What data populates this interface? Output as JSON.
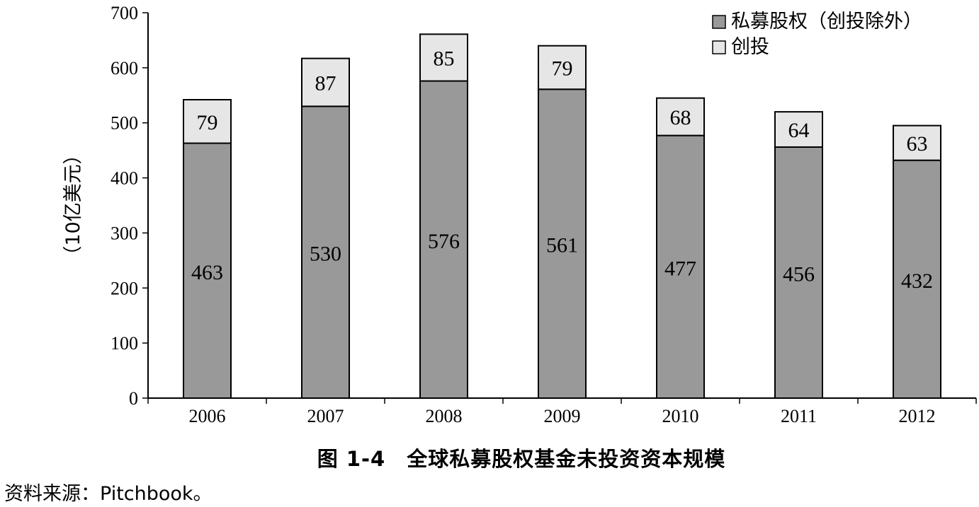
{
  "chart_data": {
    "type": "bar",
    "stacked": true,
    "categories": [
      "2006",
      "2007",
      "2008",
      "2009",
      "2010",
      "2011",
      "2012"
    ],
    "series": [
      {
        "name": "私募股权（创投除外）",
        "values": [
          463,
          530,
          576,
          561,
          477,
          456,
          432
        ],
        "color": "#999999"
      },
      {
        "name": "创投",
        "values": [
          79,
          87,
          85,
          79,
          68,
          64,
          63
        ],
        "color": "#e6e6e6"
      }
    ],
    "ylabel": "（10亿美元）",
    "xlabel": "",
    "ylim": [
      0,
      700
    ],
    "yticks": [
      0,
      100,
      200,
      300,
      400,
      500,
      600,
      700
    ],
    "grid": false,
    "legend_position": "top-right"
  },
  "figure": {
    "title": "图 1-4　全球私募股权基金未投资资本规模",
    "source": "资料来源：Pitchbook。"
  }
}
